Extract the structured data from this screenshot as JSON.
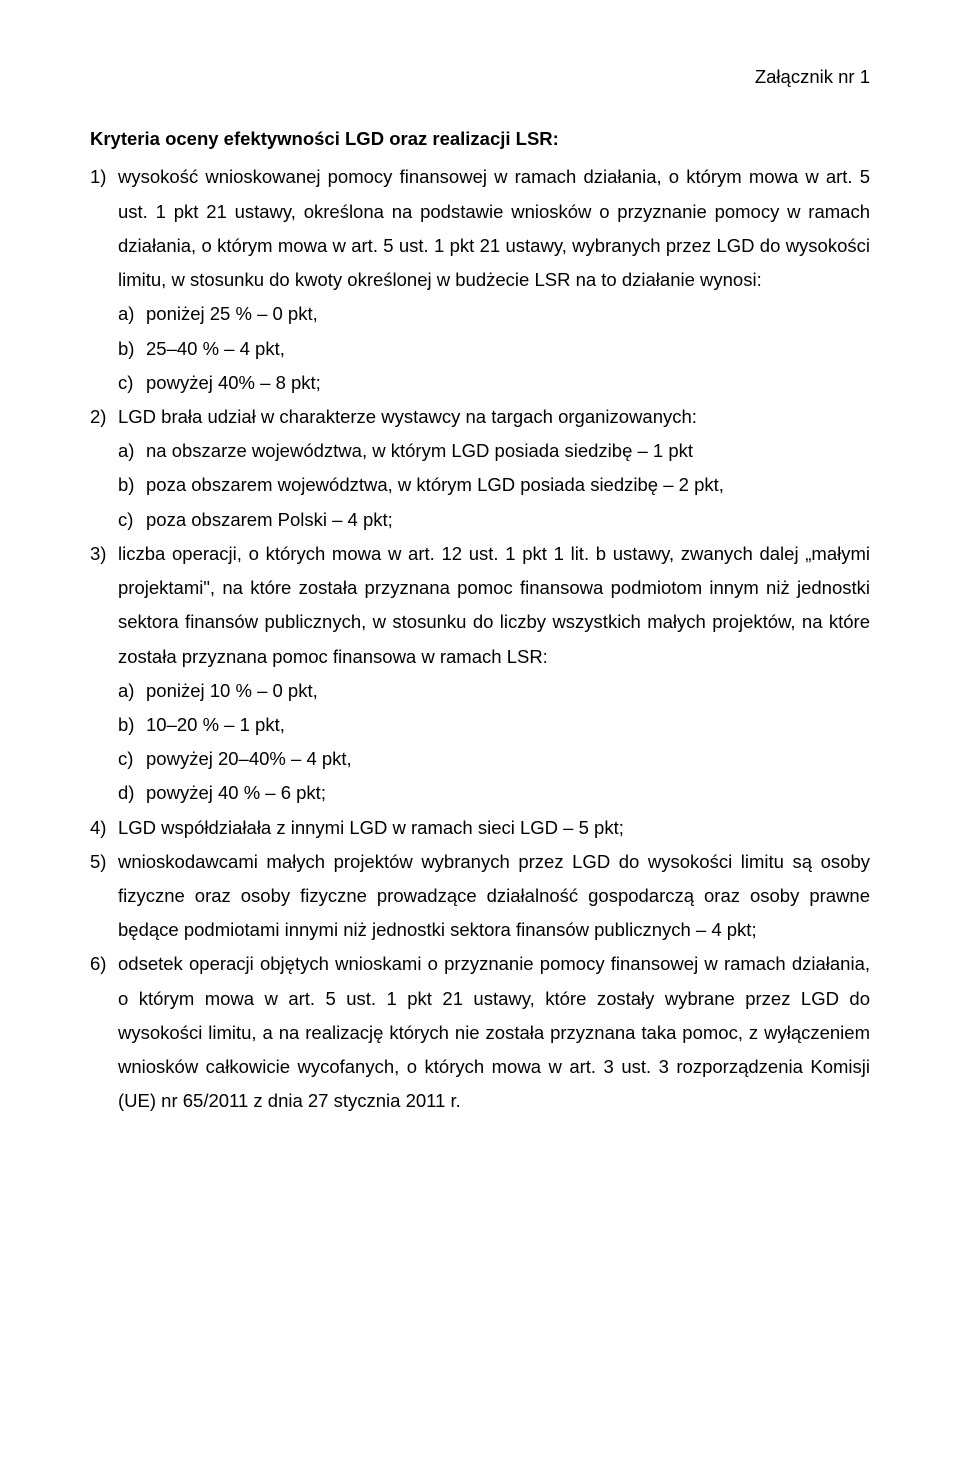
{
  "colors": {
    "text": "#000000",
    "background": "#ffffff"
  },
  "typography": {
    "font_family": "Arial",
    "base_size_pt": 14,
    "line_height": 1.85,
    "title_weight": "bold"
  },
  "annex": "Załącznik nr 1",
  "title": "Kryteria oceny efektywności LGD oraz realizacji LSR:",
  "items": [
    {
      "num": "1)",
      "text": "wysokość wnioskowanej pomocy finansowej w ramach działania, o którym mowa w art. 5 ust. 1 pkt 21 ustawy, określona na podstawie wniosków o przyznanie pomocy w ramach działania, o którym mowa w art. 5 ust. 1 pkt 21 ustawy, wybranych przez LGD do wysokości limitu, w stosunku do kwoty określonej w budżecie LSR na to działanie wynosi:",
      "subs": [
        {
          "lbl": "a)",
          "txt": "poniżej 25 % – 0 pkt,"
        },
        {
          "lbl": "b)",
          "txt": "25–40 % – 4 pkt,"
        },
        {
          "lbl": "c)",
          "txt": "powyżej 40% – 8 pkt;"
        }
      ]
    },
    {
      "num": "2)",
      "text": "LGD brała udział w charakterze wystawcy na targach organizowanych:",
      "subs": [
        {
          "lbl": "a)",
          "txt": "na obszarze województwa, w którym LGD posiada siedzibę – 1 pkt"
        },
        {
          "lbl": "b)",
          "txt": "poza obszarem województwa, w którym LGD posiada siedzibę – 2 pkt,"
        },
        {
          "lbl": "c)",
          "txt": "poza obszarem Polski – 4 pkt;"
        }
      ]
    },
    {
      "num": "3)",
      "text": "liczba operacji, o których mowa w art. 12 ust. 1 pkt 1 lit. b ustawy, zwanych dalej „małymi projektami\", na które została przyznana pomoc finansowa podmiotom innym niż jednostki sektora finansów publicznych, w stosunku do liczby wszystkich małych projektów, na które została przyznana pomoc finansowa w ramach LSR:",
      "subs": [
        {
          "lbl": "a)",
          "txt": "poniżej 10 % – 0 pkt,"
        },
        {
          "lbl": "b)",
          "txt": "10–20 % – 1 pkt,"
        },
        {
          "lbl": "c)",
          "txt": "powyżej 20–40% – 4 pkt,"
        },
        {
          "lbl": "d)",
          "txt": "powyżej 40 % – 6 pkt;"
        }
      ]
    },
    {
      "num": "4)",
      "text": "LGD współdziałała z innymi LGD w ramach sieci LGD – 5 pkt;",
      "subs": []
    },
    {
      "num": "5)",
      "text": "wnioskodawcami małych projektów wybranych przez LGD do wysokości limitu są osoby fizyczne oraz osoby fizyczne prowadzące działalność gospodarczą oraz osoby prawne będące podmiotami innymi niż jednostki sektora finansów publicznych – 4 pkt;",
      "subs": []
    },
    {
      "num": "6)",
      "text": "odsetek operacji objętych wnioskami o przyznanie pomocy finansowej w ramach działania, o którym mowa w art. 5 ust. 1 pkt 21 ustawy, które zostały wybrane przez LGD do wysokości limitu, a na realizację których nie została przyznana taka pomoc, z wyłączeniem wniosków całkowicie wycofanych, o których mowa w art. 3 ust. 3 rozporządzenia Komisji (UE) nr 65/2011 z dnia 27 stycznia 2011 r.",
      "subs": []
    }
  ]
}
